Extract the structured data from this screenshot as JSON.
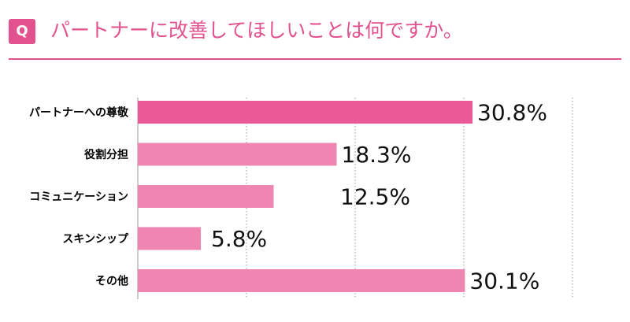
{
  "header": {
    "badge": "Q",
    "title": "パートナーに改善してほしいことは何ですか。"
  },
  "colors": {
    "accent": "#e2528f",
    "bar_primary": "#ea5a97",
    "bar_secondary": "#ef86b2",
    "gridline": "#9a9a9a"
  },
  "chart_data": {
    "type": "bar",
    "orientation": "horizontal",
    "categories": [
      "パートナーへの尊敬",
      "役割分担",
      "コミュニケーション",
      "スキンシップ",
      "その他"
    ],
    "values": [
      30.8,
      18.3,
      12.5,
      5.8,
      30.1
    ],
    "value_labels": [
      "30.8%",
      "18.3%",
      "12.5%",
      "5.8%",
      "30.1%"
    ],
    "xlim": [
      0,
      40
    ],
    "grid": true,
    "grid_style": "dotted",
    "legend": "none"
  }
}
